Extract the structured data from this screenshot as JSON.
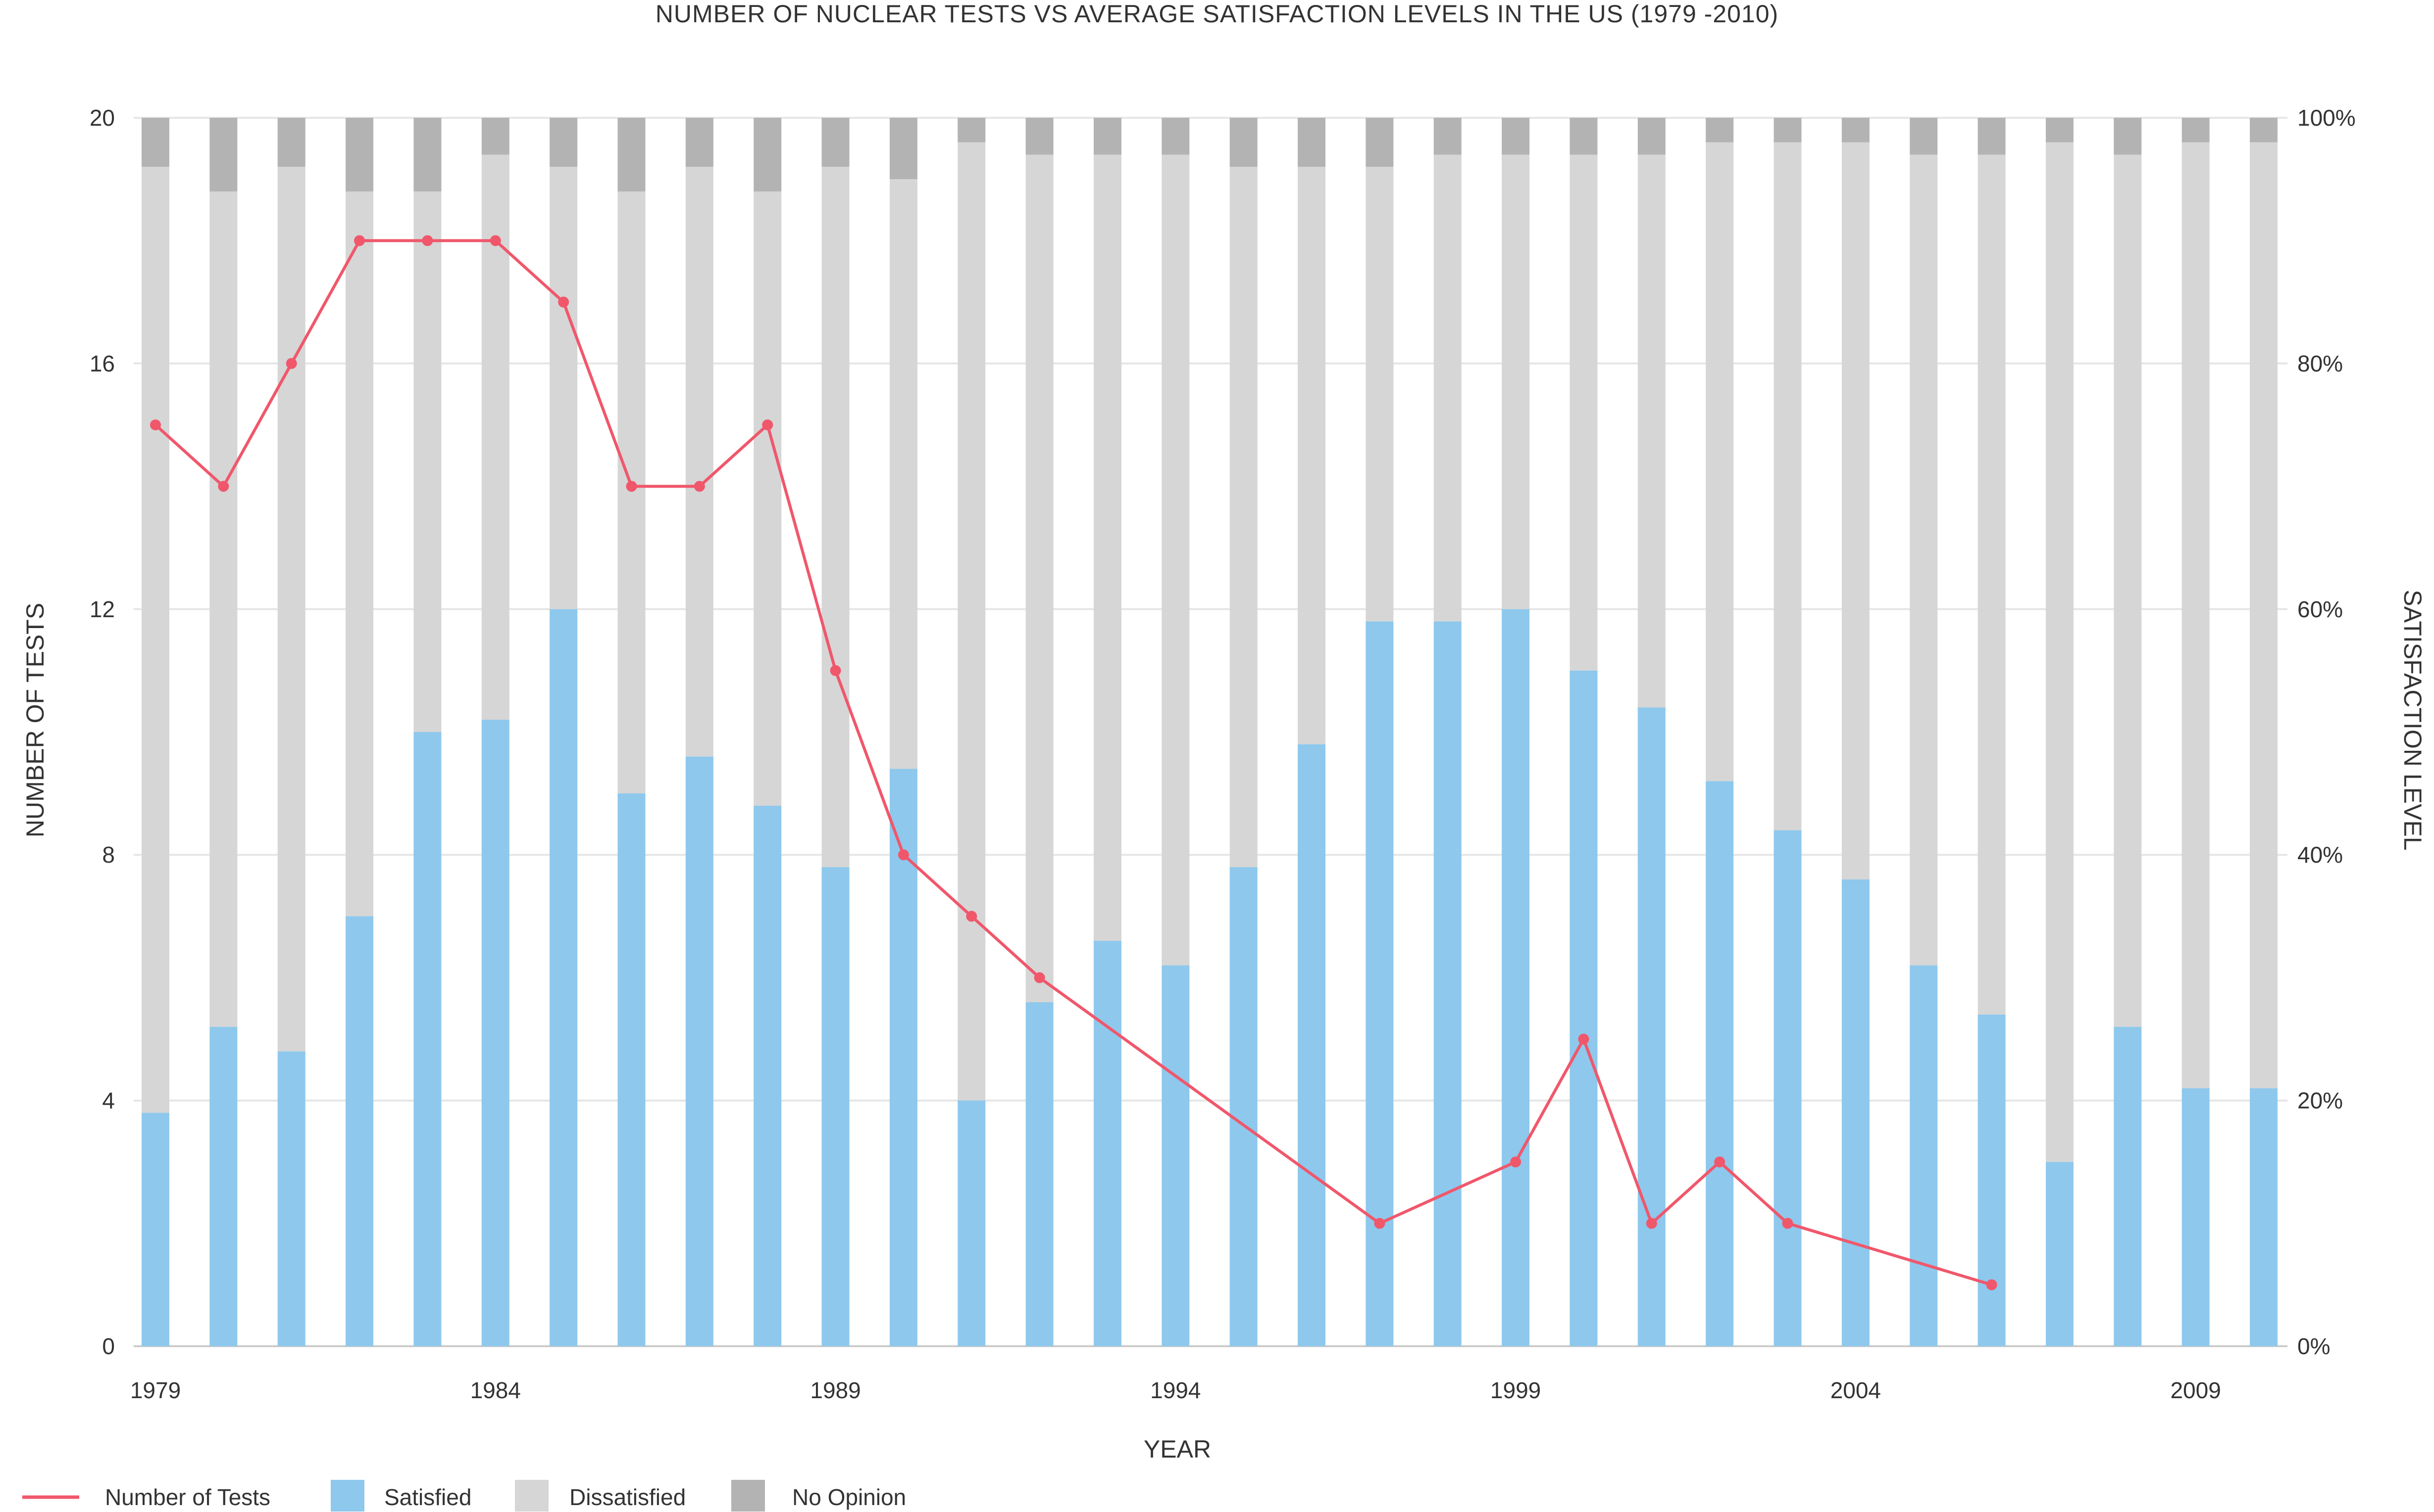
{
  "chart_data": {
    "type": "bar",
    "title": "NUMBER OF NUCLEAR TESTS VS AVERAGE SATISFACTION LEVELS IN THE US (1979  -2010)",
    "xlabel": "YEAR",
    "ylabel": "NUMBER OF TESTS",
    "y2label": "SATISFACTION LEVEL",
    "ylim": [
      0,
      20
    ],
    "y2lim": [
      0,
      100
    ],
    "yticks": [
      "0",
      "4",
      "8",
      "12",
      "16",
      "20"
    ],
    "y2ticks": [
      "0%",
      "20%",
      "40%",
      "60%",
      "80%",
      "100%"
    ],
    "xticks": [
      "1979",
      "1984",
      "1989",
      "1994",
      "1999",
      "2004",
      "2009"
    ],
    "categories": [
      1979,
      1980,
      1981,
      1982,
      1983,
      1984,
      1985,
      1986,
      1987,
      1988,
      1989,
      1990,
      1991,
      1992,
      1993,
      1994,
      1995,
      1996,
      1997,
      1998,
      1999,
      2000,
      2001,
      2002,
      2003,
      2004,
      2005,
      2006,
      2007,
      2008,
      2009,
      2010
    ],
    "stacked_series": [
      {
        "name": "Satisfied",
        "color": "#8ec8ec",
        "values": [
          19,
          26,
          24,
          35,
          50,
          51,
          60,
          45,
          48,
          44,
          39,
          47,
          20,
          28,
          33,
          31,
          39,
          49,
          59,
          59,
          60,
          55,
          52,
          46,
          42,
          38,
          31,
          27,
          15,
          26,
          21,
          21
        ]
      },
      {
        "name": "Dissatisfied",
        "color": "#d6d6d6",
        "values": [
          77,
          68,
          72,
          59,
          44,
          46,
          36,
          49,
          48,
          50,
          57,
          48,
          78,
          69,
          64,
          66,
          57,
          47,
          37,
          38,
          37,
          42,
          45,
          52,
          56,
          60,
          66,
          70,
          83,
          71,
          77,
          77
        ]
      },
      {
        "name": "No Opinion",
        "color": "#b3b3b3",
        "values": [
          4,
          6,
          4,
          6,
          6,
          3,
          4,
          6,
          4,
          6,
          4,
          5,
          2,
          3,
          3,
          3,
          4,
          4,
          4,
          3,
          3,
          3,
          3,
          2,
          2,
          2,
          3,
          3,
          2,
          3,
          2,
          2
        ]
      }
    ],
    "line_series": {
      "name": "Number of Tests",
      "color": "#f0576b",
      "points": [
        [
          1979,
          15
        ],
        [
          1980,
          14
        ],
        [
          1981,
          16
        ],
        [
          1982,
          18
        ],
        [
          1983,
          18
        ],
        [
          1984,
          18
        ],
        [
          1985,
          17
        ],
        [
          1986,
          14
        ],
        [
          1987,
          14
        ],
        [
          1988,
          15
        ],
        [
          1989,
          11
        ],
        [
          1990,
          8
        ],
        [
          1991,
          7
        ],
        [
          1992,
          6
        ],
        [
          1997,
          2
        ],
        [
          1999,
          3
        ],
        [
          2000,
          5
        ],
        [
          2001,
          2
        ],
        [
          2002,
          3
        ],
        [
          2003,
          2
        ],
        [
          2006,
          1
        ]
      ]
    },
    "legend": [
      "Number of Tests",
      "Satisfied",
      "Dissatisfied",
      "No Opinion"
    ],
    "legend_position": "bottom-left",
    "grid": true
  }
}
